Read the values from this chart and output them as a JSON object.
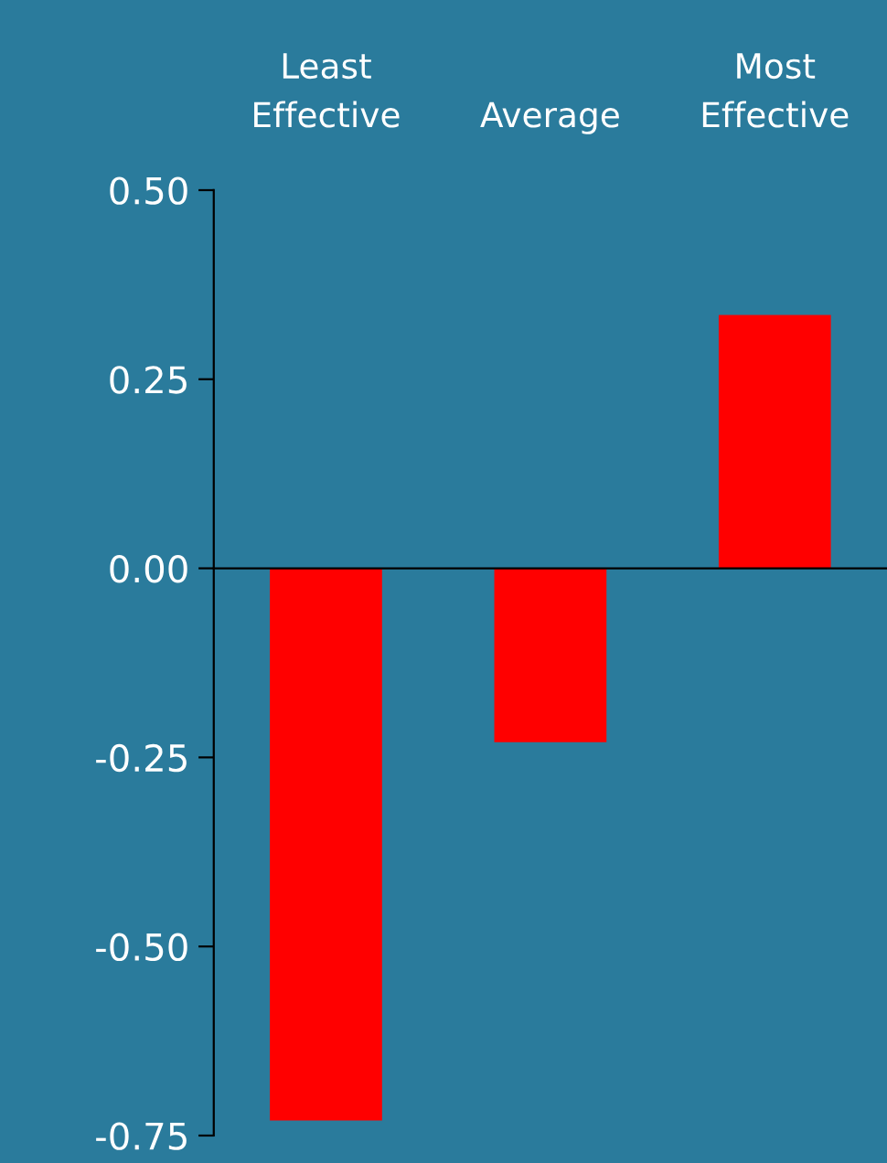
{
  "chart_data": {
    "type": "bar",
    "categories": [
      "Least\nEffective",
      "Average",
      "Most\nEffective"
    ],
    "values": [
      -0.73,
      -0.23,
      0.335
    ],
    "color": "#ff0000",
    "ylim": [
      -0.75,
      0.5
    ],
    "yticks": [
      {
        "value": -0.75,
        "label": "-0.75"
      },
      {
        "value": -0.5,
        "label": "-0.50"
      },
      {
        "value": -0.25,
        "label": "-0.25"
      },
      {
        "value": 0,
        "label": "0.00"
      },
      {
        "value": 0.25,
        "label": "0.25"
      },
      {
        "value": 0.5,
        "label": "0.50"
      }
    ]
  }
}
